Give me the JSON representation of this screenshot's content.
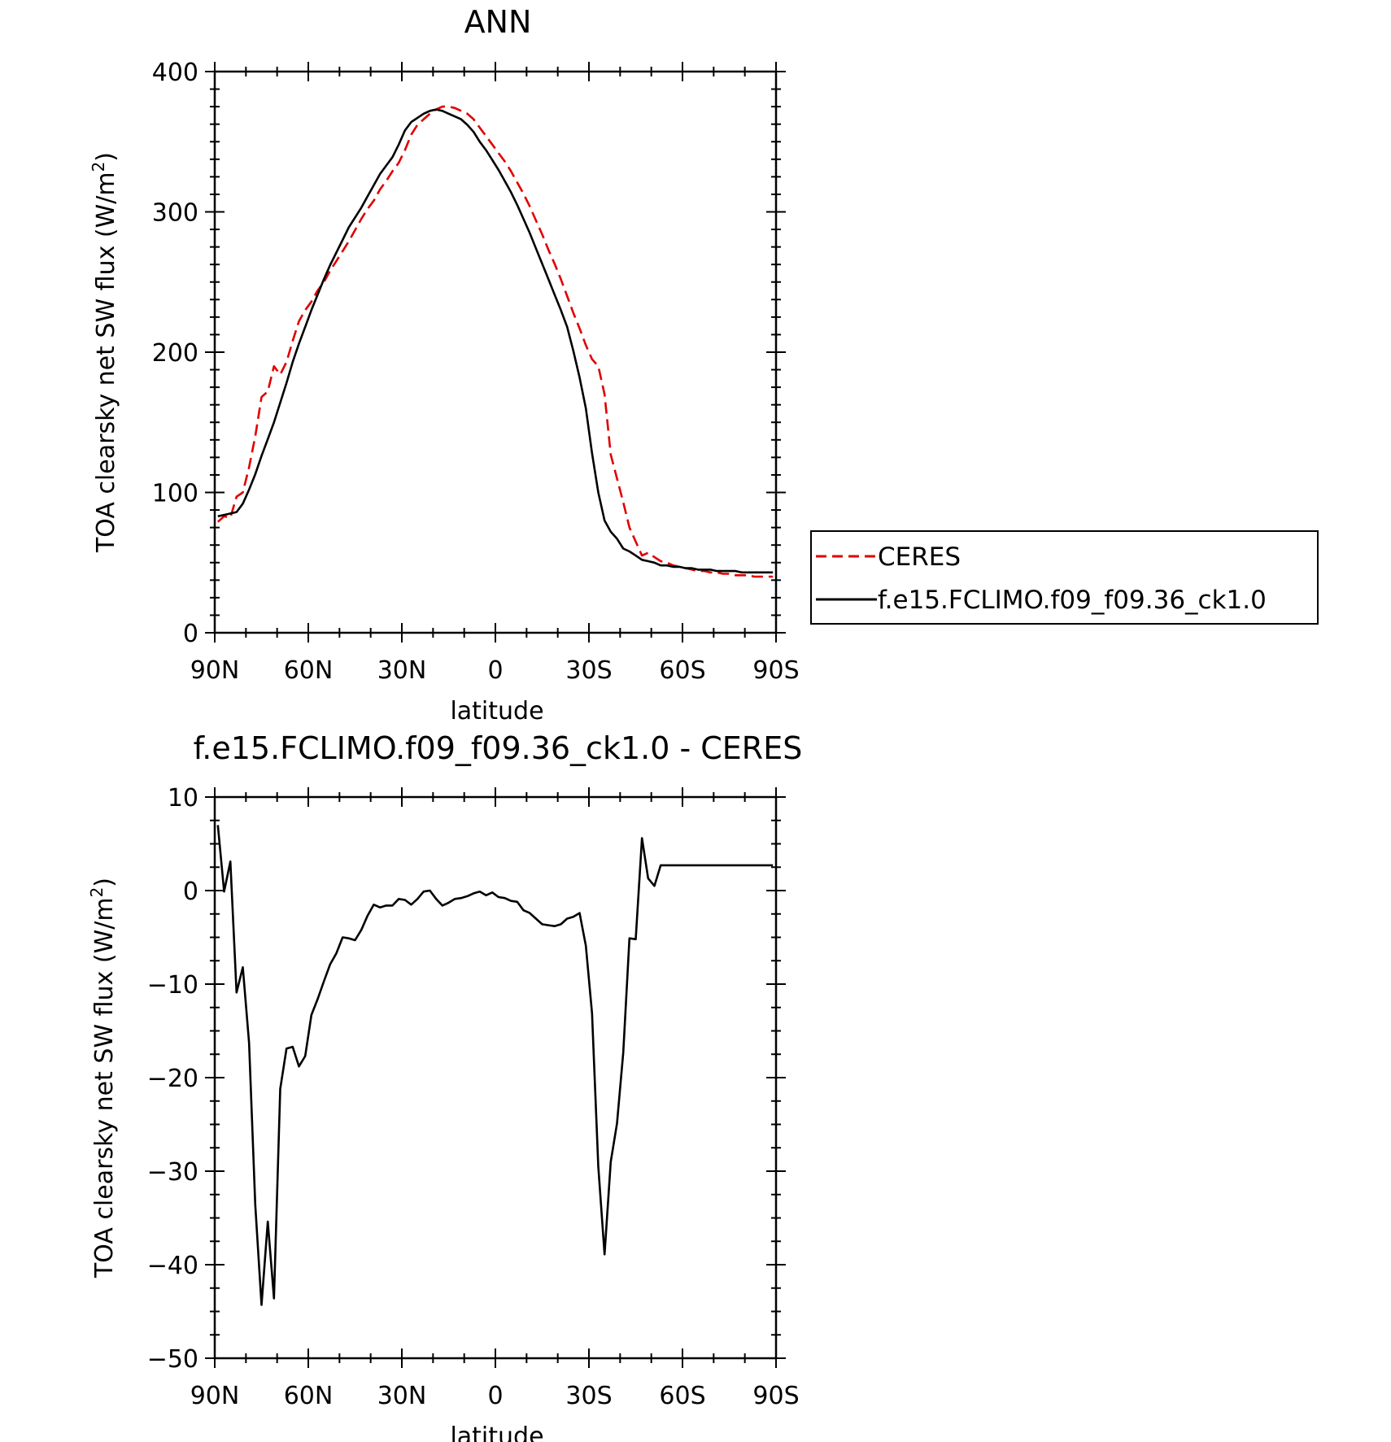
{
  "chart_data": [
    {
      "type": "line",
      "title": "ANN",
      "xlabel": "latitude",
      "ylabel": "TOA clearsky net SW flux (W/m^2)",
      "ylabel_parts": [
        "TOA clearsky net SW flux (W/m",
        "2",
        ")"
      ],
      "xlim": [
        90,
        -90
      ],
      "ylim": [
        0,
        400
      ],
      "x_ticks": [
        90,
        60,
        30,
        0,
        -30,
        -60,
        -90
      ],
      "x_tick_labels": [
        "90N",
        "60N",
        "30N",
        "0",
        "30S",
        "60S",
        "90S"
      ],
      "y_ticks": [
        0,
        100,
        200,
        300,
        400
      ],
      "y_tick_labels": [
        "0",
        "100",
        "200",
        "300",
        "400"
      ],
      "grid": false,
      "legend": {
        "placement": "right",
        "entries": [
          "CERES",
          "f.e15.FCLIMO.f09_f09.36_ck1.0"
        ]
      },
      "series": [
        {
          "name": "CERES",
          "color": "#e00000",
          "style": "dashed",
          "x": [
            89,
            87,
            85,
            83,
            81,
            79,
            77,
            75,
            73,
            71,
            69,
            67,
            65,
            63,
            61,
            59,
            57,
            55,
            53,
            51,
            49,
            47,
            45,
            43,
            41,
            39,
            37,
            35,
            33,
            31,
            29,
            27,
            25,
            23,
            21,
            19,
            17,
            15,
            13,
            11,
            9,
            7,
            5,
            3,
            1,
            -1,
            -3,
            -5,
            -7,
            -9,
            -11,
            -13,
            -15,
            -17,
            -19,
            -21,
            -23,
            -25,
            -27,
            -29,
            -31,
            -33,
            -35,
            -37,
            -39,
            -41,
            -43,
            -45,
            -47,
            -49,
            -51,
            -53,
            -55,
            -57,
            -59,
            -61,
            -63,
            -65,
            -67,
            -69,
            -71,
            -73,
            -75,
            -77,
            -79,
            -81,
            -83,
            -85,
            -87,
            -89
          ],
          "y": [
            79,
            83,
            82,
            97,
            100,
            118,
            140,
            168,
            172,
            190,
            184,
            193,
            208,
            222,
            230,
            236,
            244,
            250,
            258,
            265,
            272,
            279,
            287,
            295,
            302,
            308,
            316,
            322,
            329,
            335,
            344,
            355,
            362,
            366,
            370,
            373,
            375,
            375,
            374,
            372,
            370,
            366,
            360,
            354,
            348,
            342,
            336,
            329,
            321,
            313,
            304,
            294,
            284,
            273,
            263,
            252,
            240,
            228,
            217,
            205,
            195,
            190,
            170,
            127,
            110,
            93,
            75,
            65,
            55,
            57,
            54,
            51,
            50,
            48,
            47,
            46,
            45,
            44,
            44,
            43,
            43,
            42,
            42,
            41,
            41,
            41,
            40,
            40,
            40,
            40
          ]
        },
        {
          "name": "f.e15.FCLIMO.f09_f09.36_ck1.0",
          "color": "#000000",
          "style": "solid",
          "x": [
            89,
            87,
            85,
            83,
            81,
            79,
            77,
            75,
            73,
            71,
            69,
            67,
            65,
            63,
            61,
            59,
            57,
            55,
            53,
            51,
            49,
            47,
            45,
            43,
            41,
            39,
            37,
            35,
            33,
            31,
            29,
            27,
            25,
            23,
            21,
            19,
            17,
            15,
            13,
            11,
            9,
            7,
            5,
            3,
            1,
            -1,
            -3,
            -5,
            -7,
            -9,
            -11,
            -13,
            -15,
            -17,
            -19,
            -21,
            -23,
            -25,
            -27,
            -29,
            -31,
            -33,
            -35,
            -37,
            -39,
            -41,
            -43,
            -45,
            -47,
            -49,
            -51,
            -53,
            -55,
            -57,
            -59,
            -61,
            -63,
            -65,
            -67,
            -69,
            -71,
            -73,
            -75,
            -77,
            -79,
            -81,
            -83,
            -85,
            -87,
            -89
          ],
          "y": [
            83,
            84,
            85,
            86,
            92,
            102,
            113,
            126,
            138,
            150,
            164,
            178,
            193,
            206,
            218,
            230,
            241,
            252,
            262,
            271,
            280,
            289,
            296,
            303,
            311,
            319,
            327,
            333,
            339,
            348,
            358,
            364,
            367,
            370,
            372,
            373,
            372,
            370,
            368,
            366,
            362,
            357,
            350,
            344,
            337,
            330,
            322,
            314,
            305,
            295,
            285,
            274,
            263,
            252,
            241,
            230,
            218,
            201,
            182,
            160,
            128,
            100,
            80,
            72,
            67,
            60,
            58,
            55,
            52,
            51,
            50,
            48,
            48,
            47,
            47,
            46,
            46,
            45,
            45,
            45,
            44,
            44,
            44,
            44,
            43,
            43,
            43,
            43,
            43,
            43
          ]
        }
      ]
    },
    {
      "type": "line",
      "title": "f.e15.FCLIMO.f09_f09.36_ck1.0 - CERES",
      "xlabel": "latitude",
      "ylabel": "TOA clearsky net SW flux (W/m^2)",
      "ylabel_parts": [
        "TOA clearsky net SW flux (W/m",
        "2",
        ")"
      ],
      "xlim": [
        90,
        -90
      ],
      "ylim": [
        -50,
        10
      ],
      "x_ticks": [
        90,
        60,
        30,
        0,
        -30,
        -60,
        -90
      ],
      "x_tick_labels": [
        "90N",
        "60N",
        "30N",
        "0",
        "30S",
        "60S",
        "90S"
      ],
      "y_ticks": [
        -50,
        -40,
        -30,
        -20,
        -10,
        0,
        10
      ],
      "y_tick_labels": [
        "−50",
        "−40",
        "−30",
        "−20",
        "−10",
        "0",
        "10"
      ],
      "grid": false,
      "series": [
        {
          "color": "#000000",
          "style": "solid",
          "x": [
            89,
            87,
            85,
            83,
            81,
            79,
            77,
            75,
            73,
            71,
            69,
            67,
            65,
            63,
            61,
            59,
            57,
            55,
            53,
            51,
            49,
            47,
            45,
            43,
            41,
            39,
            37,
            35,
            33,
            31,
            29,
            27,
            25,
            23,
            21,
            19,
            17,
            15,
            13,
            11,
            9,
            7,
            5,
            3,
            1,
            -1,
            -3,
            -5,
            -7,
            -9,
            -11,
            -13,
            -15,
            -17,
            -19,
            -21,
            -23,
            -25,
            -27,
            -29,
            -31,
            -33,
            -35,
            -37,
            -39,
            -41,
            -43,
            -45,
            -47,
            -49,
            -51,
            -53,
            -55,
            -57,
            -59,
            -61,
            -63,
            -65,
            -67,
            -69,
            -71,
            -73,
            -75,
            -77,
            -79,
            -81,
            -83,
            -85,
            -87,
            -89
          ],
          "y": [
            7.0,
            -0.1,
            3.1,
            -10.9,
            -8.2,
            -16.3,
            -33.6,
            -44.3,
            -35.4,
            -43.6,
            -21.2,
            -16.9,
            -16.7,
            -18.8,
            -17.7,
            -13.3,
            -11.6,
            -9.7,
            -7.9,
            -6.7,
            -5.0,
            -5.1,
            -5.3,
            -4.2,
            -2.7,
            -1.5,
            -1.8,
            -1.6,
            -1.6,
            -0.9,
            -1.0,
            -1.5,
            -0.9,
            -0.1,
            0.0,
            -0.9,
            -1.6,
            -1.3,
            -0.9,
            -0.8,
            -0.6,
            -0.3,
            -0.1,
            -0.5,
            -0.2,
            -0.7,
            -0.8,
            -1.1,
            -1.2,
            -2.1,
            -2.4,
            -3.0,
            -3.6,
            -3.7,
            -3.8,
            -3.6,
            -3.0,
            -2.8,
            -2.4,
            -5.9,
            -13.1,
            -29.5,
            -38.9,
            -29.0,
            -24.9,
            -17.3,
            -5.1,
            -5.2,
            5.6,
            1.3,
            0.5,
            2.7,
            2.7,
            2.7,
            2.7,
            2.7,
            2.7,
            2.7,
            2.7,
            2.7,
            2.7,
            2.7,
            2.7,
            2.7,
            2.7,
            2.7,
            2.7,
            2.7,
            2.7,
            2.7
          ]
        }
      ]
    }
  ]
}
